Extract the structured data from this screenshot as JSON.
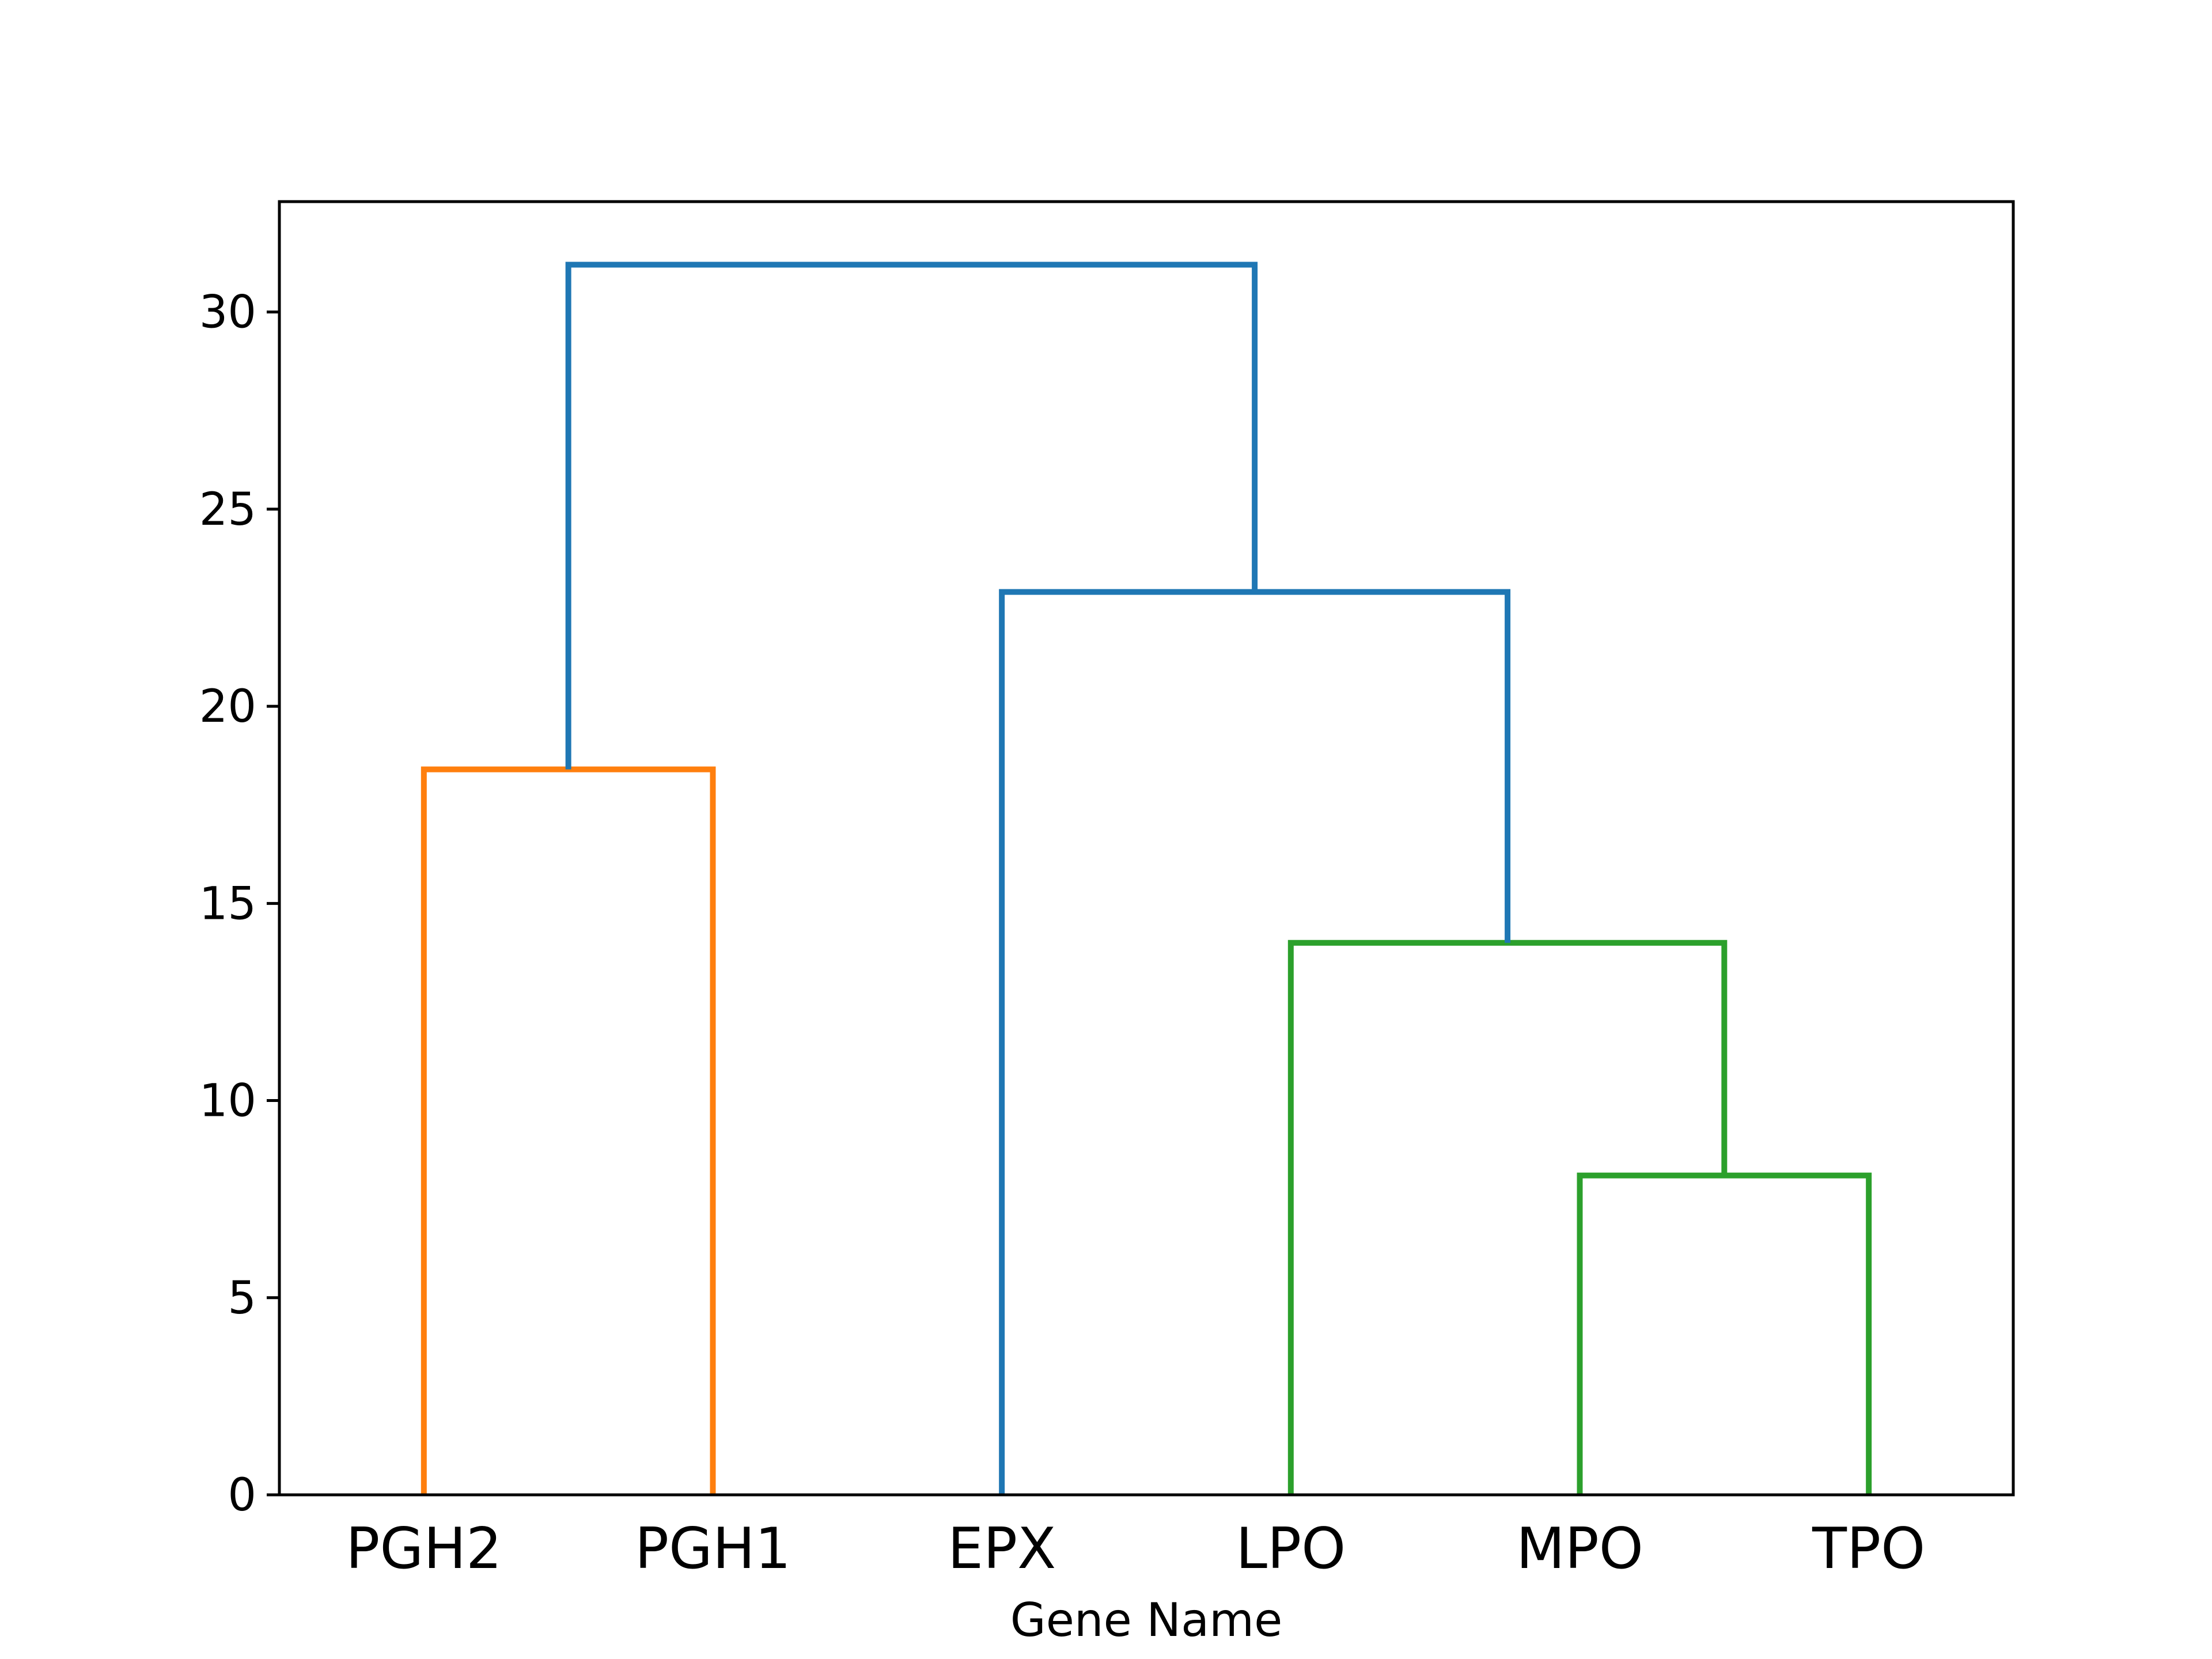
{
  "chart_data": {
    "type": "dendrogram",
    "xlabel": "Gene Name",
    "ylabel": "",
    "ylim": [
      0,
      32.8
    ],
    "yticks": [
      0,
      5,
      10,
      15,
      20,
      25,
      30
    ],
    "leaves": [
      "PGH2",
      "PGH1",
      "EPX",
      "LPO",
      "MPO",
      "TPO"
    ],
    "links": [
      {
        "left": "PGH2",
        "right": "PGH1",
        "height": 18.4,
        "color": "#ff7f0e"
      },
      {
        "left": "MPO",
        "right": "TPO",
        "height": 8.1,
        "color": "#2ca02c"
      },
      {
        "left": "LPO",
        "right": "MPO+TPO",
        "height": 14.0,
        "color": "#2ca02c"
      },
      {
        "left": "EPX",
        "right": "LPO+MPO+TPO",
        "height": 22.9,
        "color": "#1f77b4"
      },
      {
        "left": "PGH2+PGH1",
        "right": "EPX+LPO+MPO+TPO",
        "height": 31.2,
        "color": "#1f77b4"
      }
    ],
    "grid": false,
    "legend": "none"
  }
}
